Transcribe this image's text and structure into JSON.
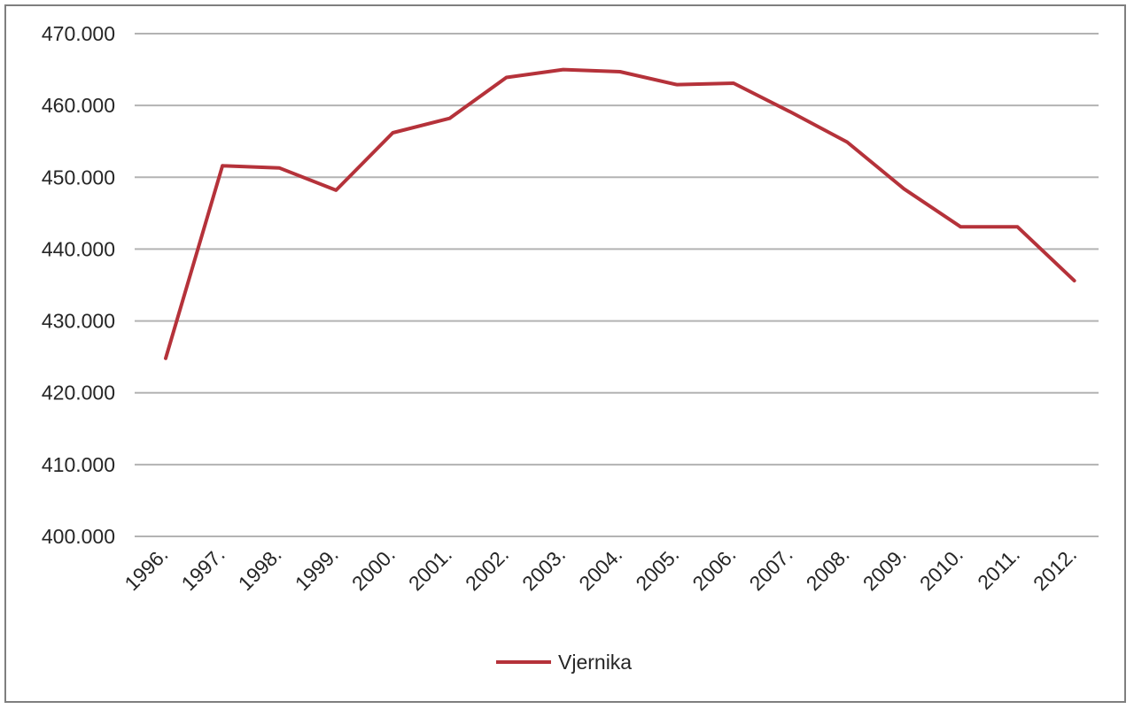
{
  "chart_data": {
    "type": "line",
    "x": [
      "1996.",
      "1997.",
      "1998.",
      "1999.",
      "2000.",
      "2001.",
      "2002.",
      "2003.",
      "2004.",
      "2005.",
      "2006.",
      "2007.",
      "2008.",
      "2009.",
      "2010.",
      "2011.",
      "2012."
    ],
    "series": [
      {
        "name": "Vjernika",
        "color": "#c0392b",
        "values": [
          424800,
          451600,
          451300,
          448200,
          456200,
          458200,
          463900,
          465000,
          464700,
          462900,
          463100,
          459100,
          454900,
          448400,
          443100,
          443100,
          435600
        ]
      }
    ],
    "y_ticks": [
      "400.000",
      "410.000",
      "420.000",
      "430.000",
      "440.000",
      "450.000",
      "460.000",
      "470.000"
    ],
    "ylim": [
      400000,
      470000
    ],
    "grid": true,
    "legend_position": "bottom",
    "line_color": "#b5323a",
    "grid_color": "#b3b3b3"
  }
}
